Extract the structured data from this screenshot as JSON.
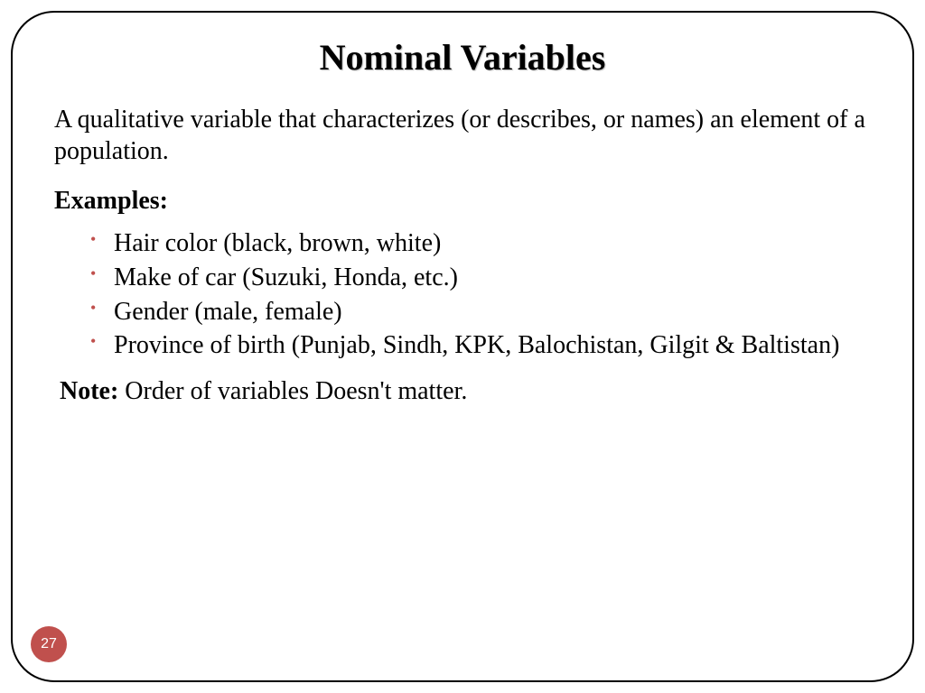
{
  "slide": {
    "title": "Nominal Variables",
    "definition": "A qualitative variable that characterizes (or describes, or names) an element of a population.",
    "examples_label": "Examples:",
    "examples": [
      "Hair color (black, brown, white)",
      "Make of car (Suzuki, Honda, etc.)",
      "Gender (male, female)",
      "Province of birth (Punjab, Sindh, KPK, Balochistan, Gilgit & Baltistan)"
    ],
    "note_label": "Note:",
    "note_text": " Order of variables Doesn't matter.",
    "page_number": "27",
    "colors": {
      "bullet": "#c0504d",
      "badge_bg": "#c0504d",
      "badge_text": "#ffffff",
      "border": "#000000",
      "text": "#000000",
      "background": "#ffffff"
    },
    "typography": {
      "title_fontsize": 40,
      "body_fontsize": 28,
      "font_family": "Times New Roman"
    },
    "layout": {
      "border_radius": 48,
      "border_width": 2
    }
  }
}
